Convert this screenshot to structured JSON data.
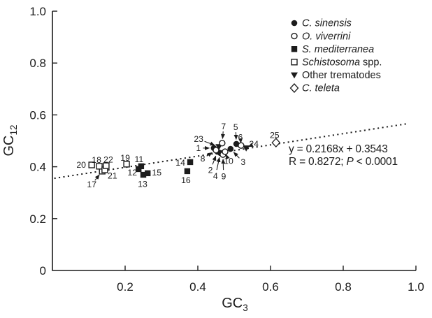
{
  "colors": {
    "ink": "#1c1c1c",
    "background": "#ffffff"
  },
  "axes": {
    "x": {
      "label_base": "GC",
      "label_sub": "3",
      "min": 0,
      "max": 1.0,
      "tick_values": [
        0.2,
        0.4,
        0.6,
        0.8,
        1.0
      ],
      "tick_labels": [
        "0.2",
        "0.4",
        "0.6",
        "0.8",
        "1.0"
      ]
    },
    "y": {
      "label_base": "GC",
      "label_sub": "12",
      "min": 0,
      "max": 1.0,
      "tick_values": [
        0,
        0.2,
        0.4,
        0.6,
        0.8,
        1.0
      ],
      "tick_labels": [
        "0",
        "0.2",
        "0.4",
        "0.6",
        "0.8",
        "1.0"
      ]
    }
  },
  "legend": {
    "items": [
      {
        "marker": "circle-filled",
        "italic_part": "C. sinensis",
        "regular_part": ""
      },
      {
        "marker": "circle-open",
        "italic_part": "O. viverrini",
        "regular_part": ""
      },
      {
        "marker": "square-filled",
        "italic_part": "S. mediterranea",
        "regular_part": ""
      },
      {
        "marker": "square-open",
        "italic_part": "Schistosoma",
        "regular_part": " spp."
      },
      {
        "marker": "triangle-filled",
        "italic_part": "",
        "regular_part": "Other trematodes"
      },
      {
        "marker": "diamond-open",
        "italic_part": "C. teleta",
        "regular_part": ""
      }
    ]
  },
  "annotation": {
    "equation": "y = 0.2168x + 0.3543",
    "r_part": "R = 0.8272; ",
    "p_italic": "P",
    "p_rest": " < 0.0001"
  },
  "chart_data": {
    "type": "scatter",
    "title": "",
    "xlabel": "GC3",
    "ylabel": "GC12",
    "xlim": [
      0,
      1.0
    ],
    "ylim": [
      0,
      1.0
    ],
    "grid": false,
    "legend_position": "top-right",
    "trendline": {
      "style": "dotted",
      "slope": 0.2168,
      "intercept": 0.3543,
      "r_value": 0.8272,
      "p_value": "<0.0001",
      "x_start": 0.005,
      "x_end": 0.98
    },
    "series": [
      {
        "name": "C. sinensis",
        "marker": "circle-filled",
        "points": [
          {
            "n": "1",
            "x": 0.444,
            "y": 0.472,
            "dx": -22,
            "dy": 0,
            "arrow": true
          },
          {
            "n": "2",
            "x": 0.454,
            "y": 0.458,
            "dx": -10,
            "dy": 26,
            "arrow": true
          },
          {
            "n": "3",
            "x": 0.49,
            "y": 0.469,
            "dx": 18,
            "dy": 19,
            "arrow": true
          },
          {
            "n": "4",
            "x": 0.462,
            "y": 0.453,
            "dx": -7,
            "dy": 33,
            "arrow": true
          },
          {
            "n": "5",
            "x": 0.506,
            "y": 0.488,
            "dx": -1,
            "dy": -24,
            "arrow": true
          }
        ]
      },
      {
        "name": "O. viverrini",
        "marker": "circle-open",
        "points": [
          {
            "n": "6",
            "x": 0.519,
            "y": 0.482,
            "dx": -1,
            "dy": -12,
            "arrow": true
          },
          {
            "n": "7",
            "x": 0.467,
            "y": 0.491,
            "dx": 2,
            "dy": -24,
            "arrow": true
          },
          {
            "n": "8",
            "x": 0.45,
            "y": 0.464,
            "dx": -19,
            "dy": 12,
            "arrow": true
          },
          {
            "n": "9",
            "x": 0.469,
            "y": 0.447,
            "dx": 1,
            "dy": 31,
            "arrow": true
          },
          {
            "n": "10",
            "x": 0.475,
            "y": 0.458,
            "dx": 5,
            "dy": 13,
            "arrow": true
          }
        ]
      },
      {
        "name": "S. mediterranea",
        "marker": "square-filled",
        "points": [
          {
            "n": "11",
            "x": 0.244,
            "y": 0.402,
            "dx": -3,
            "dy": -10,
            "arrow": false
          },
          {
            "n": "12",
            "x": 0.237,
            "y": 0.391,
            "dx": -9,
            "dy": 5,
            "arrow": false
          },
          {
            "n": "13",
            "x": 0.25,
            "y": 0.369,
            "dx": -1,
            "dy": 13,
            "arrow": false
          },
          {
            "n": "14",
            "x": 0.379,
            "y": 0.418,
            "dx": -14,
            "dy": 1,
            "arrow": false
          },
          {
            "n": "15",
            "x": 0.262,
            "y": 0.375,
            "dx": 13,
            "dy": -1,
            "arrow": false
          },
          {
            "n": "16",
            "x": 0.371,
            "y": 0.383,
            "dx": -2,
            "dy": 13,
            "arrow": false
          }
        ]
      },
      {
        "name": "Schistosoma spp.",
        "marker": "square-open",
        "points": [
          {
            "n": "17",
            "x": 0.137,
            "y": 0.383,
            "dx": -15,
            "dy": 19,
            "arrow": true
          },
          {
            "n": "18",
            "x": 0.129,
            "y": 0.402,
            "dx": -4,
            "dy": -9,
            "arrow": false
          },
          {
            "n": "19",
            "x": 0.204,
            "y": 0.41,
            "dx": -2,
            "dy": -9,
            "arrow": false
          },
          {
            "n": "20",
            "x": 0.108,
            "y": 0.407,
            "dx": -15,
            "dy": 0,
            "arrow": false
          },
          {
            "n": "21",
            "x": 0.144,
            "y": 0.388,
            "dx": 11,
            "dy": 8,
            "arrow": false
          },
          {
            "n": "22",
            "x": 0.148,
            "y": 0.404,
            "dx": 3,
            "dy": -9,
            "arrow": false
          }
        ]
      },
      {
        "name": "Other trematodes",
        "marker": "triangle-filled",
        "points": [
          {
            "n": "23",
            "x": 0.458,
            "y": 0.477,
            "dx": -29,
            "dy": -11,
            "arrow": true
          },
          {
            "n": "24",
            "x": 0.533,
            "y": 0.472,
            "dx": 11,
            "dy": -6,
            "arrow": true
          }
        ]
      },
      {
        "name": "C. teleta",
        "marker": "diamond-open",
        "points": [
          {
            "n": "25",
            "x": 0.615,
            "y": 0.493,
            "dx": -2,
            "dy": -11,
            "arrow": false
          }
        ]
      }
    ]
  }
}
